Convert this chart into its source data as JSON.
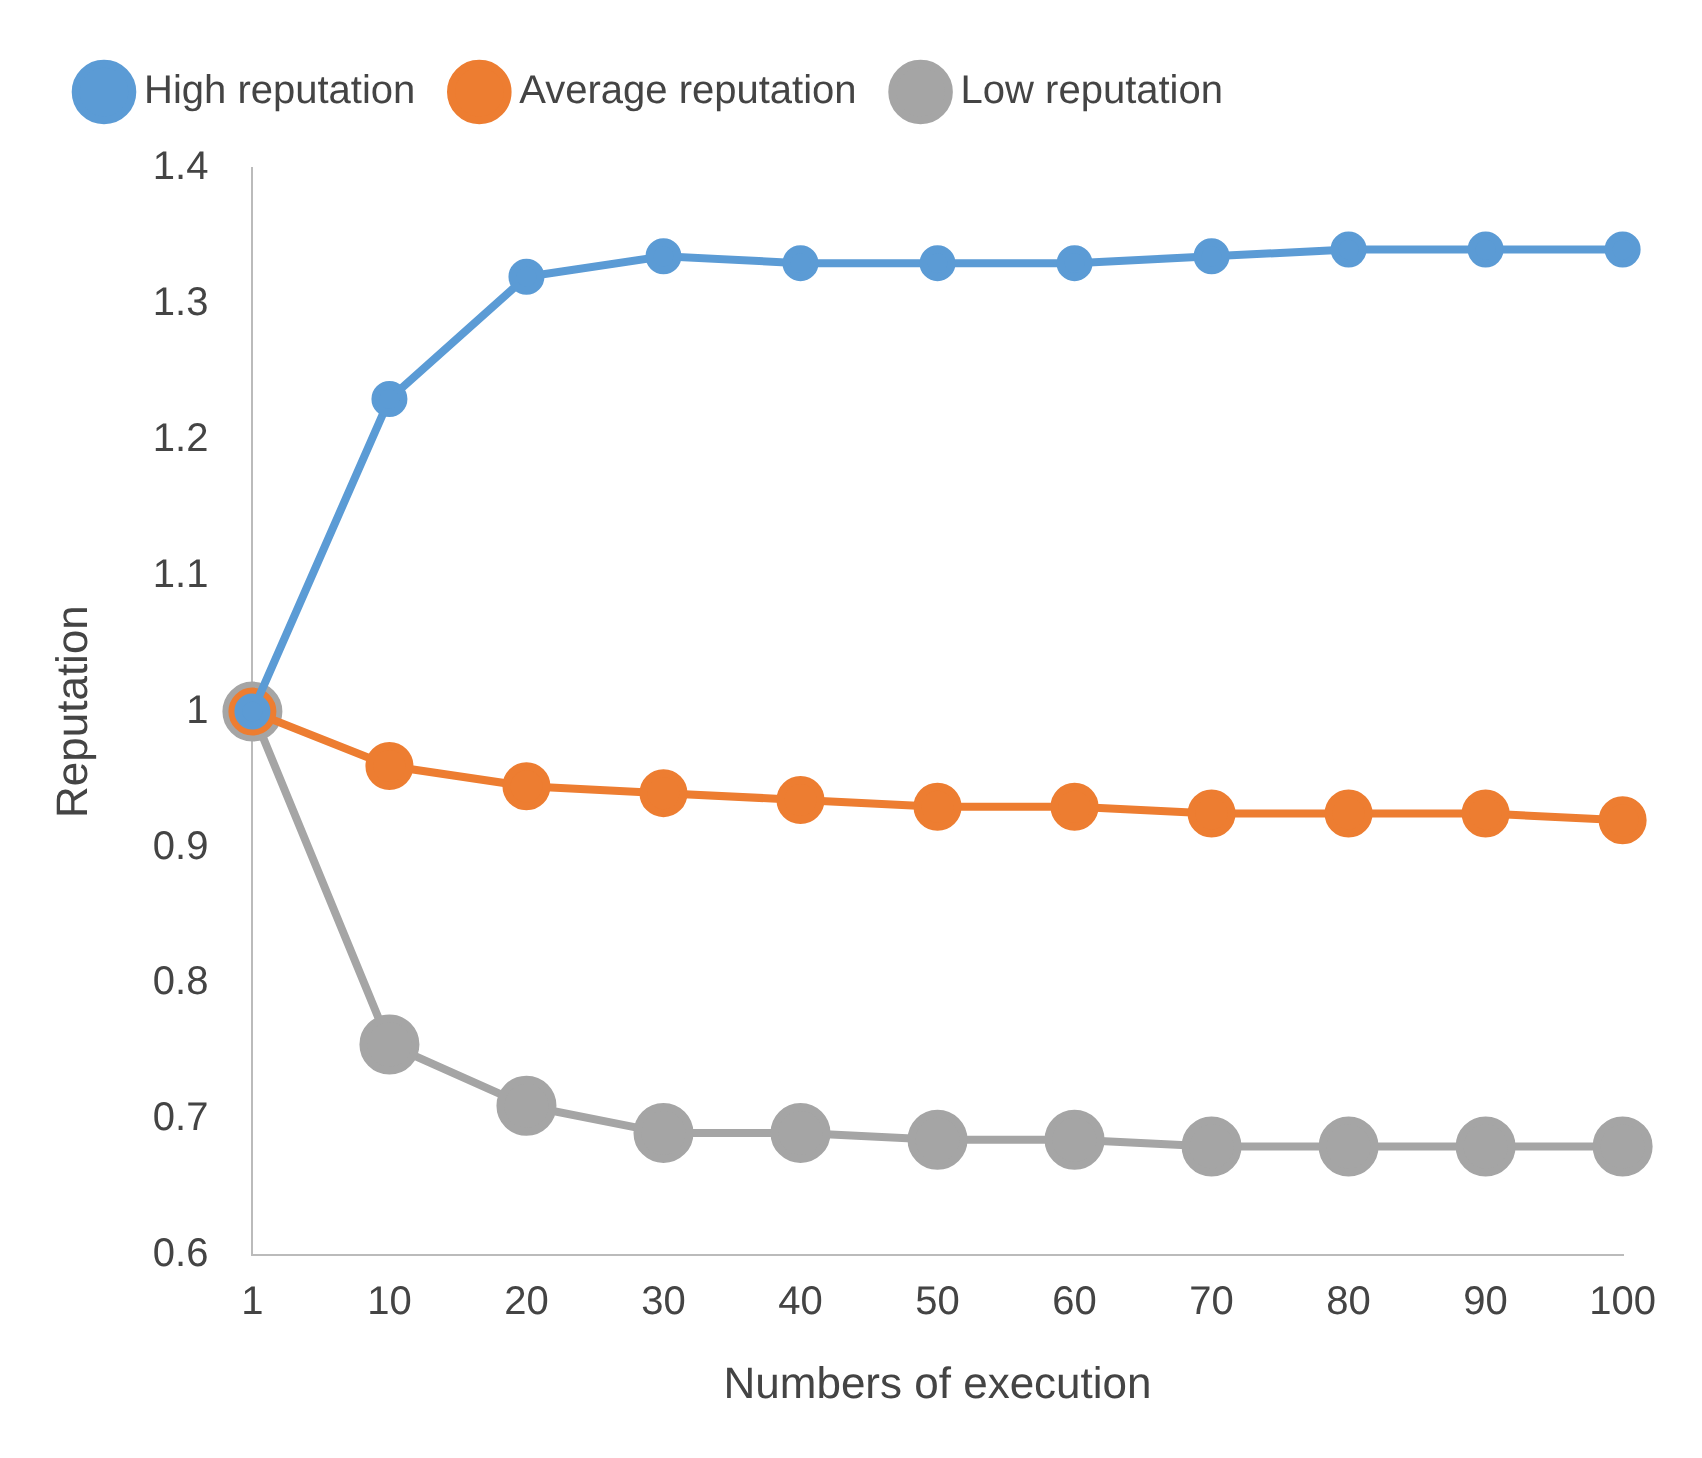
{
  "chart_data": {
    "type": "line",
    "xlabel": "Numbers of execution",
    "ylabel": "Reputation",
    "categories": [
      "1",
      "10",
      "20",
      "30",
      "40",
      "50",
      "60",
      "70",
      "80",
      "90",
      "100"
    ],
    "series": [
      {
        "name": "High reputation",
        "color": "#5b9bd5",
        "values": [
          1.0,
          1.23,
          1.32,
          1.335,
          1.33,
          1.33,
          1.33,
          1.335,
          1.34,
          1.34,
          1.34
        ]
      },
      {
        "name": "Average reputation",
        "color": "#ed7d31",
        "values": [
          1.0,
          0.96,
          0.945,
          0.94,
          0.935,
          0.93,
          0.93,
          0.925,
          0.925,
          0.925,
          0.92
        ]
      },
      {
        "name": "Low reputation",
        "color": "#a5a5a5",
        "values": [
          1.0,
          0.755,
          0.71,
          0.69,
          0.69,
          0.685,
          0.685,
          0.68,
          0.68,
          0.68,
          0.68
        ]
      }
    ],
    "ylim": [
      0.6,
      1.4
    ],
    "yticks": [
      0.6,
      0.7,
      0.8,
      0.9,
      1,
      1.1,
      1.2,
      1.3,
      1.4
    ],
    "grid": false,
    "legend": "top",
    "marker": "circle",
    "line_style": "solid"
  }
}
